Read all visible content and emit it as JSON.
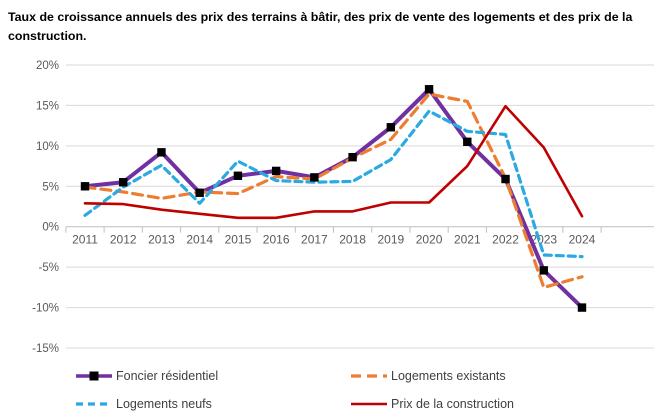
{
  "title": "Taux de croissance annuels des prix des terrains à bâtir, des prix de vente des logements et des prix de la construction.",
  "chart_data": {
    "type": "line",
    "categories": [
      "2011",
      "2012",
      "2013",
      "2014",
      "2015",
      "2016",
      "2017",
      "2018",
      "2019",
      "2020",
      "2021",
      "2022",
      "2023",
      "2024"
    ],
    "series": [
      {
        "name": "Foncier résidentiel",
        "color": "#7030A0",
        "line_style": "solid",
        "line_width": 4,
        "marker": "square",
        "marker_color": "#000000",
        "values": [
          5.0,
          5.5,
          9.2,
          4.2,
          6.3,
          6.9,
          6.1,
          8.6,
          12.3,
          17.0,
          10.5,
          5.9,
          -5.4,
          -10.0
        ]
      },
      {
        "name": "Logements existants",
        "color": "#ED7D31",
        "line_style": "dashed",
        "line_width": 3.2,
        "marker": "none",
        "values": [
          4.9,
          4.3,
          3.5,
          4.3,
          4.1,
          6.2,
          5.9,
          8.5,
          10.8,
          16.4,
          15.5,
          6.0,
          -7.5,
          -6.2
        ]
      },
      {
        "name": "Logements neufs",
        "color": "#2BA9E1",
        "line_style": "dashed-short",
        "line_width": 3.2,
        "marker": "none",
        "values": [
          1.4,
          4.9,
          7.6,
          2.9,
          8.1,
          5.7,
          5.5,
          5.6,
          8.3,
          14.3,
          11.8,
          11.4,
          -3.5,
          -3.7
        ]
      },
      {
        "name": "Prix de la construction",
        "color": "#C00000",
        "line_style": "solid",
        "line_width": 2.6,
        "marker": "none",
        "values": [
          2.9,
          2.8,
          2.1,
          1.6,
          1.1,
          1.1,
          1.9,
          1.9,
          3.0,
          3.0,
          7.5,
          14.9,
          9.8,
          1.3
        ]
      }
    ],
    "ylim": [
      -15,
      20
    ],
    "ytick_values": [
      20,
      15,
      10,
      5,
      0,
      -5,
      -10,
      -15
    ],
    "ytick_labels": [
      "20%",
      "15%",
      "10%",
      "5%",
      "0%",
      "-5%",
      "-10%",
      "-15%"
    ],
    "grid": true,
    "legend_position": "bottom",
    "gridline_color": "#D9D9D9",
    "axis_color": "#BFBFBF",
    "tick_label_color": "#595959"
  }
}
